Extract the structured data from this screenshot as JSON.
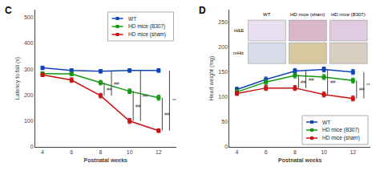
{
  "chart_data": [
    {
      "type": "line",
      "title": "C",
      "xlabel": "Postnatal weeks",
      "ylabel": "Latency to fall (s)",
      "x": [
        4,
        6,
        8,
        10,
        12
      ],
      "xlim": [
        3.5,
        13.2
      ],
      "xticks": [
        4,
        6,
        8,
        10,
        12
      ],
      "ylim": [
        0,
        530
      ],
      "yticks": [
        0,
        100,
        200,
        300,
        400,
        500
      ],
      "grid": false,
      "legend": "upper right",
      "marker": "square",
      "series": [
        {
          "name": "WT",
          "color": "#1144bb",
          "values": [
            305,
            295,
            292,
            295,
            295
          ],
          "errors": [
            7,
            7,
            7,
            7,
            7
          ]
        },
        {
          "name": "HD mice (B307)",
          "color": "#119911",
          "values": [
            283,
            282,
            248,
            215,
            190
          ],
          "errors": [
            7,
            7,
            9,
            9,
            10
          ]
        },
        {
          "name": "HD mice (sham)",
          "color": "#cc1111",
          "values": [
            278,
            258,
            198,
            100,
            63
          ],
          "errors": [
            7,
            9,
            9,
            10,
            7
          ]
        }
      ],
      "annotations": [
        {
          "text": "##",
          "x": 8,
          "between": [
            "HD mice (sham)",
            "HD mice (B307)"
          ],
          "color": "#444444"
        },
        {
          "text": "##",
          "x": 8,
          "between": [
            "HD mice (sham)",
            "WT"
          ],
          "color": "#444444"
        },
        {
          "text": "##",
          "x": 10,
          "between": [
            "HD mice (sham)",
            "HD mice (B307)"
          ],
          "color": "#444444"
        },
        {
          "text": "##",
          "x": 10,
          "between": [
            "HD mice (sham)",
            "WT"
          ],
          "color": "#444444"
        },
        {
          "text": "##",
          "x": 12,
          "between": [
            "HD mice (sham)",
            "HD mice (B307)"
          ],
          "color": "#444444"
        },
        {
          "text": "**",
          "x": 12,
          "between": [
            "HD mice (sham)",
            "WT"
          ],
          "color": "#444444"
        }
      ]
    },
    {
      "type": "line",
      "title": "D",
      "xlabel": "Postnatal weeks",
      "ylabel": "Heart weight (mg)",
      "x": [
        4,
        6,
        8,
        10,
        12
      ],
      "xlim": [
        3.5,
        13.2
      ],
      "xticks": [
        4,
        6,
        8,
        10,
        12
      ],
      "ylim": [
        0,
        275
      ],
      "yticks": [
        0,
        50,
        100,
        150,
        200,
        250
      ],
      "grid": false,
      "legend": "lower right",
      "marker": "square",
      "series": [
        {
          "name": "WT",
          "color": "#1144bb",
          "values": [
            115,
            135,
            152,
            155,
            150
          ],
          "errors": [
            5,
            5,
            5,
            5,
            5
          ]
        },
        {
          "name": "HD mice (B307)",
          "color": "#119911",
          "values": [
            110,
            130,
            143,
            140,
            133
          ],
          "errors": [
            5,
            5,
            5,
            5,
            5
          ]
        },
        {
          "name": "HD mice (sham)",
          "color": "#cc1111",
          "values": [
            107,
            118,
            118,
            105,
            97
          ],
          "errors": [
            4,
            5,
            5,
            5,
            5
          ]
        }
      ],
      "annotations": [
        {
          "text": "##",
          "x": 8,
          "between": [
            "HD mice (sham)",
            "HD mice (B307)"
          ],
          "color": "#444444"
        },
        {
          "text": "##",
          "x": 8,
          "between": [
            "HD mice (sham)",
            "WT"
          ],
          "color": "#444444"
        },
        {
          "text": "##",
          "x": 10,
          "between": [
            "HD mice (sham)",
            "WT"
          ],
          "color": "#444444"
        },
        {
          "text": "##",
          "x": 12,
          "between": [
            "HD mice (sham)",
            "HD mice (B307)"
          ],
          "color": "#444444"
        },
        {
          "text": "**",
          "x": 12,
          "between": [
            "HD mice (sham)",
            "WT"
          ],
          "color": "#444444"
        }
      ],
      "inset": {
        "column_labels": [
          "WT",
          "HD mice (sham)",
          "HD mice (B307)"
        ],
        "row_labels": [
          "H&E",
          "mHtt"
        ],
        "colors": [
          [
            "#e8dff0",
            "#d8b8c8",
            "#e0cce0"
          ],
          [
            "#d8dce8",
            "#d8c8a0",
            "#d8cfc0"
          ]
        ]
      }
    }
  ]
}
